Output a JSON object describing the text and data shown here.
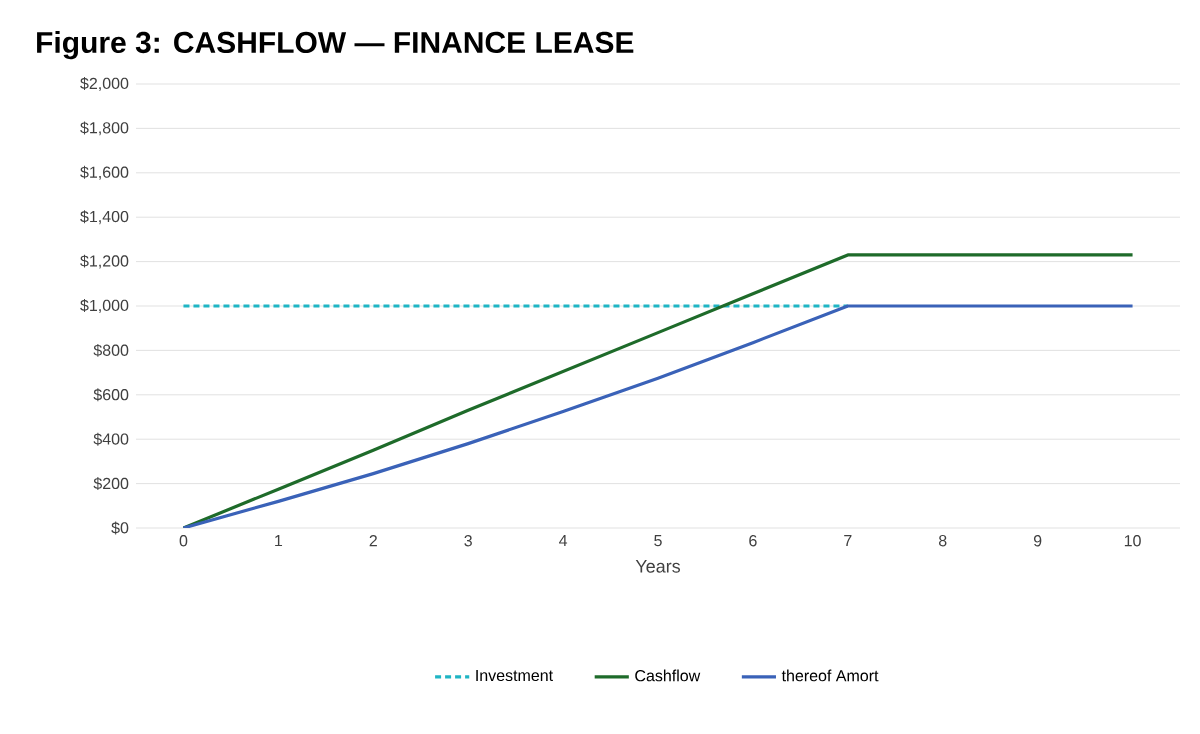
{
  "chart_data": {
    "type": "line",
    "title": "Figure 3: CASHFLOW — FINANCE LEASE",
    "xlabel": "Years",
    "categories": [
      "0",
      "1",
      "2",
      "3",
      "4",
      "5",
      "6",
      "7",
      "8",
      "9",
      "10"
    ],
    "series": [
      {
        "name": "Investment",
        "color": "#1fb5c4",
        "line_style": "dashed",
        "values": [
          1000,
          1000,
          1000,
          1000,
          1000,
          1000,
          1000,
          1000,
          null,
          null,
          null
        ]
      },
      {
        "name": "Cashflow",
        "color": "#1e6b2a",
        "line_style": "solid",
        "values": [
          0,
          175,
          350,
          530,
          705,
          880,
          1055,
          1230,
          1230,
          1230,
          1230
        ]
      },
      {
        "name": "thereof Amort",
        "color": "#3a62b8",
        "line_style": "solid",
        "values": [
          0,
          120,
          245,
          380,
          525,
          675,
          835,
          1000,
          1000,
          1000,
          1000
        ]
      }
    ],
    "ylim": [
      0,
      2000
    ],
    "yticks": [
      {
        "value": 0,
        "label": "$0"
      },
      {
        "value": 200,
        "label": "$200"
      },
      {
        "value": 400,
        "label": "$400"
      },
      {
        "value": 600,
        "label": "$600"
      },
      {
        "value": 800,
        "label": "$800"
      },
      {
        "value": 1000,
        "label": "$1,000"
      },
      {
        "value": 1200,
        "label": "$1,200"
      },
      {
        "value": 1400,
        "label": "$1,400"
      },
      {
        "value": 1600,
        "label": "$1,600"
      },
      {
        "value": 1800,
        "label": "$1,800"
      },
      {
        "value": 2000,
        "label": "$2,000"
      }
    ],
    "grid": "y",
    "legend": "bottom",
    "marker": "none"
  }
}
